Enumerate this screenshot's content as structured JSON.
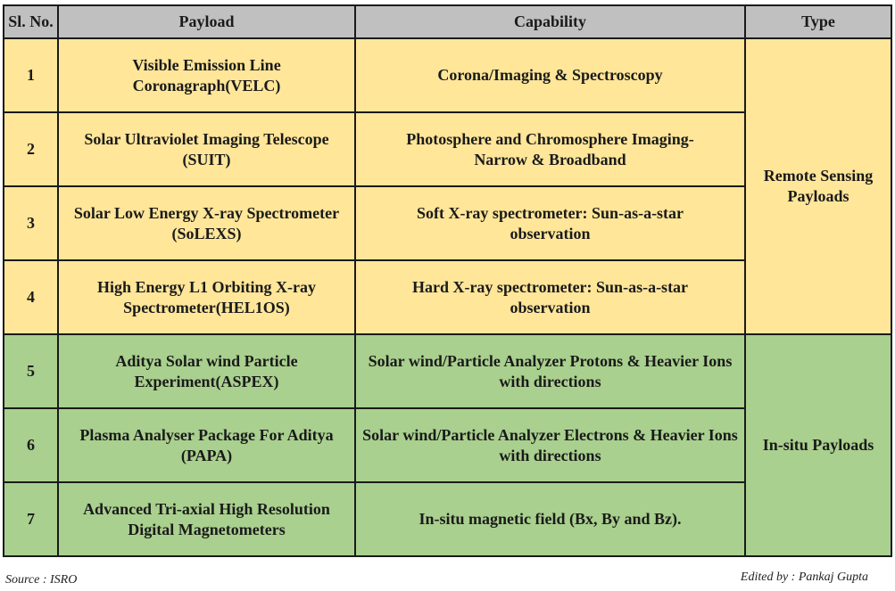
{
  "headers": {
    "sl_no": "Sl. No.",
    "payload": "Payload",
    "capability": "Capability",
    "type": "Type"
  },
  "rows": [
    {
      "sl": "1",
      "payload": "Visible Emission Line Coronagraph(VELC)",
      "capability": "Corona/Imaging & Spectroscopy"
    },
    {
      "sl": "2",
      "payload": "Solar Ultraviolet Imaging Telescope (SUIT)",
      "capability": "Photosphere and Chromosphere Imaging- Narrow & Broadband"
    },
    {
      "sl": "3",
      "payload": "Solar Low Energy X-ray Spectrometer (SoLEXS)",
      "capability": "Soft X-ray spectrometer: Sun-as-a-star observation"
    },
    {
      "sl": "4",
      "payload": "High Energy L1 Orbiting X-ray Spectrometer(HEL1OS)",
      "capability": "Hard X-ray spectrometer: Sun-as-a-star observation"
    },
    {
      "sl": "5",
      "payload": "Aditya Solar wind Particle Experiment(ASPEX)",
      "capability": "Solar wind/Particle Analyzer Protons & Heavier Ions with directions"
    },
    {
      "sl": "6",
      "payload": "Plasma Analyser Package For Aditya (PAPA)",
      "capability": "Solar wind/Particle Analyzer Electrons & Heavier Ions with directions"
    },
    {
      "sl": "7",
      "payload": "Advanced Tri-axial High Resolution Digital Magnetometers",
      "capability": "In-situ magnetic field (Bx, By and Bz)."
    }
  ],
  "types": {
    "remote": "Remote Sensing Payloads",
    "insitu": "In-situ Payloads"
  },
  "footer": {
    "source": "Source : ISRO",
    "edited": "Edited by : Pankaj Gupta"
  },
  "colors": {
    "header": "#c0c0c0",
    "remote": "#ffe699",
    "insitu": "#a9d08e"
  }
}
